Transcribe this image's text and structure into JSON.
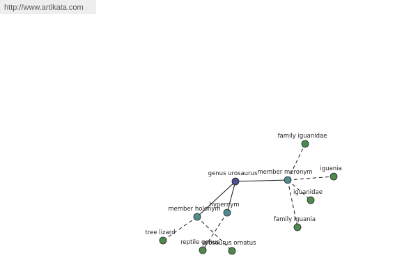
{
  "header": {
    "url": "http://www.artikata.com"
  },
  "nodes": [
    {
      "label": "genus urosaurus"
    },
    {
      "label": "member meronym"
    },
    {
      "label": "member holonym"
    },
    {
      "label": "hypernym"
    },
    {
      "label": "family iguanidae"
    },
    {
      "label": "iguania"
    },
    {
      "label": "iguanidae"
    },
    {
      "label": "family iguania"
    },
    {
      "label": "tree lizard"
    },
    {
      "label": "reptile genus"
    },
    {
      "label": "urosaurus ornatus"
    }
  ]
}
